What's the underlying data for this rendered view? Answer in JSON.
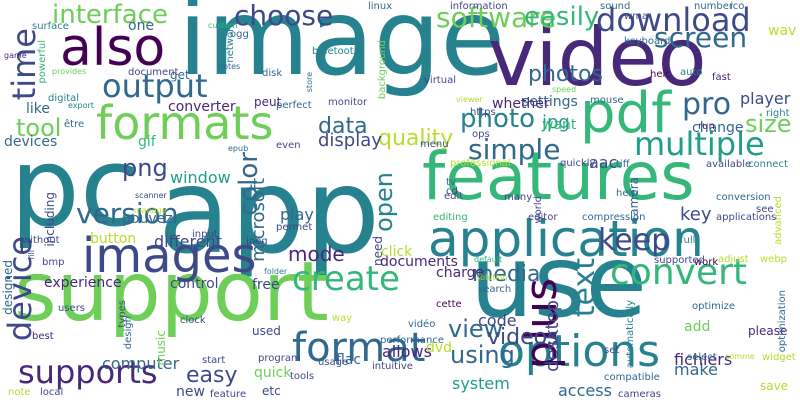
{
  "palette": {
    "background": "#ffffff",
    "colors": [
      "#440154",
      "#482878",
      "#3e4989",
      "#31688e",
      "#26828e",
      "#1f9e89",
      "#35b779",
      "#6ece58",
      "#b5de2b",
      "#fde725"
    ]
  },
  "words": [
    {
      "text": "image",
      "color": "#26828e",
      "vertical": false
    },
    {
      "text": "app",
      "color": "#26828e",
      "vertical": false
    },
    {
      "text": "support",
      "color": "#6ece58",
      "vertical": false
    },
    {
      "text": "use",
      "color": "#26828e",
      "vertical": false
    },
    {
      "text": "pc",
      "color": "#26828e",
      "vertical": false
    },
    {
      "text": "video",
      "color": "#482878",
      "vertical": false
    },
    {
      "text": "features",
      "color": "#35b779",
      "vertical": false
    },
    {
      "text": "pdf",
      "color": "#35b779",
      "vertical": false
    },
    {
      "text": "application",
      "color": "#26828e",
      "vertical": false
    },
    {
      "text": "images",
      "color": "#3e4989",
      "vertical": false
    },
    {
      "text": "formats",
      "color": "#6ece58",
      "vertical": false
    },
    {
      "text": "also",
      "color": "#440154",
      "vertical": false
    },
    {
      "text": "options",
      "color": "#26828e",
      "vertical": false
    },
    {
      "text": "format",
      "color": "#31688e",
      "vertical": false
    },
    {
      "text": "plus",
      "color": "#440154",
      "vertical": true
    },
    {
      "text": "create",
      "color": "#35b779",
      "vertical": false
    },
    {
      "text": "convert",
      "color": "#35b779",
      "vertical": false
    },
    {
      "text": "supports",
      "color": "#482878",
      "vertical": false
    },
    {
      "text": "device",
      "color": "#3e4989",
      "vertical": true
    },
    {
      "text": "time",
      "color": "#3e4989",
      "vertical": true
    },
    {
      "text": "output",
      "color": "#31688e",
      "vertical": false
    },
    {
      "text": "multiple",
      "color": "#1f9e89",
      "vertical": false
    },
    {
      "text": "download",
      "color": "#3e4989",
      "vertical": false
    },
    {
      "text": "choose",
      "color": "#3e4989",
      "vertical": false
    },
    {
      "text": "software",
      "color": "#6ece58",
      "vertical": false
    },
    {
      "text": "screen",
      "color": "#31688e",
      "vertical": false
    },
    {
      "text": "pro",
      "color": "#31688e",
      "vertical": false
    },
    {
      "text": "keep",
      "color": "#3e4989",
      "vertical": false
    },
    {
      "text": "interface",
      "color": "#6ece58",
      "vertical": false
    },
    {
      "text": "version",
      "color": "#31688e",
      "vertical": false
    },
    {
      "text": "tool",
      "color": "#6ece58",
      "vertical": false
    },
    {
      "text": "photo",
      "color": "#26828e",
      "vertical": false
    },
    {
      "text": "simple",
      "color": "#31688e",
      "vertical": false
    },
    {
      "text": "text",
      "color": "#26828e",
      "vertical": true
    },
    {
      "text": "color",
      "color": "#31688e",
      "vertical": true
    },
    {
      "text": "easily",
      "color": "#35b779",
      "vertical": false
    },
    {
      "text": "open",
      "color": "#26828e",
      "vertical": true
    },
    {
      "text": "view",
      "color": "#31688e",
      "vertical": false
    },
    {
      "text": "size",
      "color": "#6ece58",
      "vertical": false
    },
    {
      "text": "photos",
      "color": "#31688e",
      "vertical": false
    },
    {
      "text": "data",
      "color": "#31688e",
      "vertical": false
    },
    {
      "text": "quality",
      "color": "#b5de2b",
      "vertical": false
    },
    {
      "text": "using",
      "color": "#31688e",
      "vertical": false
    },
    {
      "text": "easy",
      "color": "#3e4989",
      "vertical": false
    },
    {
      "text": "media",
      "color": "#31688e",
      "vertical": false
    },
    {
      "text": "microsoft",
      "color": "#31688e",
      "vertical": true
    },
    {
      "text": "png",
      "color": "#3e4989",
      "vertical": false
    },
    {
      "text": "desktop",
      "color": "#3e4989",
      "vertical": true
    },
    {
      "text": "videos",
      "color": "#3e4989",
      "vertical": false
    },
    {
      "text": "code",
      "color": "#3e4989",
      "vertical": false
    },
    {
      "text": "mode",
      "color": "#482878",
      "vertical": false
    },
    {
      "text": "jpg",
      "color": "#1f9e89",
      "vertical": false
    },
    {
      "text": "display",
      "color": "#3e4989",
      "vertical": false
    },
    {
      "text": "settings",
      "color": "#31688e",
      "vertical": false
    },
    {
      "text": "whether",
      "color": "#482878",
      "vertical": false
    },
    {
      "text": "allows",
      "color": "#482878",
      "vertical": false
    },
    {
      "text": "make",
      "color": "#31688e",
      "vertical": false
    },
    {
      "text": "experience",
      "color": "#482878",
      "vertical": false
    },
    {
      "text": "different",
      "color": "#3e4989",
      "vertical": false
    },
    {
      "text": "window",
      "color": "#1f9e89",
      "vertical": false
    },
    {
      "text": "computer",
      "color": "#31688e",
      "vertical": false
    },
    {
      "text": "new",
      "color": "#3e4989",
      "vertical": false
    },
    {
      "text": "play",
      "color": "#31688e",
      "vertical": false
    },
    {
      "text": "quick",
      "color": "#6ece58",
      "vertical": false
    },
    {
      "text": "key",
      "color": "#3e4989",
      "vertical": false
    },
    {
      "text": "control",
      "color": "#3e4989",
      "vertical": false
    },
    {
      "text": "fichiers",
      "color": "#482878",
      "vertical": false
    },
    {
      "text": "access",
      "color": "#31688e",
      "vertical": false
    },
    {
      "text": "player",
      "color": "#3e4989",
      "vertical": false
    },
    {
      "text": "change",
      "color": "#31688e",
      "vertical": false
    },
    {
      "text": "aac",
      "color": "#3e4989",
      "vertical": false
    },
    {
      "text": "free",
      "color": "#3e4989",
      "vertical": false
    },
    {
      "text": "devices",
      "color": "#31688e",
      "vertical": false
    },
    {
      "text": "documents",
      "color": "#482878",
      "vertical": false
    },
    {
      "text": "charge",
      "color": "#482878",
      "vertical": false
    },
    {
      "text": "converter",
      "color": "#482878",
      "vertical": false
    },
    {
      "text": "click",
      "color": "#b5de2b",
      "vertical": false
    },
    {
      "text": "designed",
      "color": "#31688e",
      "vertical": true
    },
    {
      "text": "including",
      "color": "#3e4989",
      "vertical": true
    },
    {
      "text": "pouvez",
      "color": "#31688e",
      "vertical": false
    },
    {
      "text": "button",
      "color": "#b5de2b",
      "vertical": false
    },
    {
      "text": "etc",
      "color": "#3e4989",
      "vertical": false
    },
    {
      "text": "music",
      "color": "#6ece58",
      "vertical": true
    },
    {
      "text": "system",
      "color": "#1f9e89",
      "vertical": false
    },
    {
      "text": "flac",
      "color": "#31688e",
      "vertical": false
    },
    {
      "text": "save",
      "color": "#b5de2b",
      "vertical": false
    },
    {
      "text": "gif",
      "color": "#35b779",
      "vertical": false
    },
    {
      "text": "like",
      "color": "#31688e",
      "vertical": false
    },
    {
      "text": "one",
      "color": "#31688e",
      "vertical": false
    },
    {
      "text": "get",
      "color": "#31688e",
      "vertical": false
    },
    {
      "text": "want",
      "color": "#35b779",
      "vertical": false
    },
    {
      "text": "wav",
      "color": "#b5de2b",
      "vertical": false
    },
    {
      "text": "need",
      "color": "#3e4989",
      "vertical": true
    },
    {
      "text": "camera",
      "color": "#31688e",
      "vertical": true
    },
    {
      "text": "add",
      "color": "#6ece58",
      "vertical": false
    },
    {
      "text": "dvd",
      "color": "#b5de2b",
      "vertical": false
    },
    {
      "text": "please",
      "color": "#482878",
      "vertical": false
    },
    {
      "text": "work",
      "color": "#440154",
      "vertical": false
    },
    {
      "text": "network",
      "color": "#26828e",
      "vertical": true
    },
    {
      "text": "powerful",
      "color": "#35b779",
      "vertical": true
    },
    {
      "text": "peut",
      "color": "#482878",
      "vertical": false
    },
    {
      "text": "best",
      "color": "#482878",
      "vertical": false
    },
    {
      "text": "used",
      "color": "#3e4989",
      "vertical": false
    },
    {
      "text": "surface",
      "color": "#26828e",
      "vertical": false
    },
    {
      "text": "digital",
      "color": "#26828e",
      "vertical": false
    },
    {
      "text": "bluetooth",
      "color": "#26828e",
      "vertical": false
    },
    {
      "text": "information",
      "color": "#3e4989",
      "vertical": false
    },
    {
      "text": "number",
      "color": "#31688e",
      "vertical": false
    },
    {
      "text": "keyboard",
      "color": "#31688e",
      "vertical": false
    },
    {
      "text": "wma",
      "color": "#3e4989",
      "vertical": false
    },
    {
      "text": "sound",
      "color": "#31688e",
      "vertical": false
    },
    {
      "text": "linux",
      "color": "#31688e",
      "vertical": false
    },
    {
      "text": "ico",
      "color": "#31688e",
      "vertical": false
    },
    {
      "text": "mouse",
      "color": "#31688e",
      "vertical": false
    },
    {
      "text": "heic",
      "color": "#440154",
      "vertical": false
    },
    {
      "text": "auto",
      "color": "#26828e",
      "vertical": false
    },
    {
      "text": "fast",
      "color": "#482878",
      "vertical": false
    },
    {
      "text": "right",
      "color": "#26828e",
      "vertical": false
    },
    {
      "text": "run",
      "color": "#482878",
      "vertical": false
    },
    {
      "text": "available",
      "color": "#3e4989",
      "vertical": false
    },
    {
      "text": "connect",
      "color": "#26828e",
      "vertical": false
    },
    {
      "text": "conversion",
      "color": "#31688e",
      "vertical": false
    },
    {
      "text": "applications",
      "color": "#3e4989",
      "vertical": false
    },
    {
      "text": "help",
      "color": "#31688e",
      "vertical": false
    },
    {
      "text": "full",
      "color": "#26828e",
      "vertical": false
    },
    {
      "text": "compression",
      "color": "#31688e",
      "vertical": false
    },
    {
      "text": "editor",
      "color": "#3e4989",
      "vertical": false
    },
    {
      "text": "many",
      "color": "#3e4989",
      "vertical": false
    },
    {
      "text": "editing",
      "color": "#35b779",
      "vertical": false
    },
    {
      "text": "default",
      "color": "#35b779",
      "vertical": false
    },
    {
      "text": "supported",
      "color": "#3e4989",
      "vertical": false
    },
    {
      "text": "search",
      "color": "#31688e",
      "vertical": false
    },
    {
      "text": "cette",
      "color": "#440154",
      "vertical": false
    },
    {
      "text": "monitor",
      "color": "#3e4989",
      "vertical": false
    },
    {
      "text": "perfect",
      "color": "#31688e",
      "vertical": false
    },
    {
      "text": "background",
      "color": "#6ece58",
      "vertical": true
    },
    {
      "text": "virtual",
      "color": "#3e4989",
      "vertical": false
    },
    {
      "text": "speed",
      "color": "#6ece58",
      "vertical": false
    },
    {
      "text": "quickly",
      "color": "#3e4989",
      "vertical": false
    },
    {
      "text": "professional",
      "color": "#b5de2b",
      "vertical": false
    },
    {
      "text": "tv",
      "color": "#31688e",
      "vertical": false
    },
    {
      "text": "world",
      "color": "#3e4989",
      "vertical": true
    },
    {
      "text": "tiff",
      "color": "#31688e",
      "vertical": false
    },
    {
      "text": "custom",
      "color": "#35b779",
      "vertical": false
    },
    {
      "text": "store",
      "color": "#31688e",
      "vertical": true
    },
    {
      "text": "disk",
      "color": "#31688e",
      "vertical": false
    },
    {
      "text": "notes",
      "color": "#31688e",
      "vertical": false
    },
    {
      "text": "document",
      "color": "#3e4989",
      "vertical": false
    },
    {
      "text": "export",
      "color": "#26828e",
      "vertical": false
    },
    {
      "text": "provides",
      "color": "#6ece58",
      "vertical": false
    },
    {
      "text": "game",
      "color": "#482878",
      "vertical": false
    },
    {
      "text": "input",
      "color": "#3e4989",
      "vertical": false
    },
    {
      "text": "epub",
      "color": "#31688e",
      "vertical": false
    },
    {
      "text": "scanner",
      "color": "#3e4989",
      "vertical": false
    },
    {
      "text": "manage",
      "color": "#b5de2b",
      "vertical": false
    },
    {
      "text": "permet",
      "color": "#3e4989",
      "vertical": false
    },
    {
      "text": "jpeg",
      "color": "#3e4989",
      "vertical": false
    },
    {
      "text": "bmp",
      "color": "#3e4989",
      "vertical": false
    },
    {
      "text": "without",
      "color": "#3e4989",
      "vertical": false
    },
    {
      "text": "folder",
      "color": "#26828e",
      "vertical": false
    },
    {
      "text": "types",
      "color": "#3e4989",
      "vertical": true
    },
    {
      "text": "design",
      "color": "#31688e",
      "vertical": true
    },
    {
      "text": "users",
      "color": "#3e4989",
      "vertical": false
    },
    {
      "text": "clock",
      "color": "#3e4989",
      "vertical": false
    },
    {
      "text": "way",
      "color": "#b5de2b",
      "vertical": false
    },
    {
      "text": "start",
      "color": "#3e4989",
      "vertical": false
    },
    {
      "text": "program",
      "color": "#3e4989",
      "vertical": false
    },
    {
      "text": "usage",
      "color": "#3e4989",
      "vertical": false
    },
    {
      "text": "tools",
      "color": "#3e4989",
      "vertical": false
    },
    {
      "text": "intuitive",
      "color": "#3e4989",
      "vertical": false
    },
    {
      "text": "performance",
      "color": "#31688e",
      "vertical": false
    },
    {
      "text": "vidéo",
      "color": "#31688e",
      "vertical": false
    },
    {
      "text": "local",
      "color": "#3e4989",
      "vertical": false
    },
    {
      "text": "note",
      "color": "#b5de2b",
      "vertical": false
    },
    {
      "text": "feature",
      "color": "#3e4989",
      "vertical": false
    },
    {
      "text": "cameras",
      "color": "#3e4989",
      "vertical": false
    },
    {
      "text": "compatible",
      "color": "#31688e",
      "vertical": false
    },
    {
      "text": "optimize",
      "color": "#31688e",
      "vertical": false
    },
    {
      "text": "optimization",
      "color": "#31688e",
      "vertical": true
    },
    {
      "text": "select",
      "color": "#31688e",
      "vertical": false
    },
    {
      "text": "comme",
      "color": "#b5de2b",
      "vertical": false
    },
    {
      "text": "widget",
      "color": "#b5de2b",
      "vertical": false
    },
    {
      "text": "automatically",
      "color": "#26828e",
      "vertical": true
    },
    {
      "text": "webp",
      "color": "#b5de2b",
      "vertical": false
    },
    {
      "text": "advanced",
      "color": "#b5de2b",
      "vertical": true
    },
    {
      "text": "adjust",
      "color": "#b5de2b",
      "vertical": false
    },
    {
      "text": "solution",
      "color": "#b5de2b",
      "vertical": false
    },
    {
      "text": "https",
      "color": "#3e4989",
      "vertical": false
    },
    {
      "text": "viewer",
      "color": "#b5de2b",
      "vertical": false
    },
    {
      "text": "ogg",
      "color": "#31688e",
      "vertical": false
    },
    {
      "text": "être",
      "color": "#31688e",
      "vertical": false
    },
    {
      "text": "fill",
      "color": "#3e4989",
      "vertical": true
    },
    {
      "text": "menu",
      "color": "#3e4989",
      "vertical": false
    },
    {
      "text": "even",
      "color": "#3e4989",
      "vertical": false
    },
    {
      "text": "ops",
      "color": "#3e4989",
      "vertical": false
    },
    {
      "text": "edit",
      "color": "#3e4989",
      "vertical": false
    },
    {
      "text": "cd",
      "color": "#3e4989",
      "vertical": false
    },
    {
      "text": "set",
      "color": "#3e4989",
      "vertical": false
    },
    {
      "text": "see",
      "color": "#3e4989",
      "vertical": false
    }
  ]
}
